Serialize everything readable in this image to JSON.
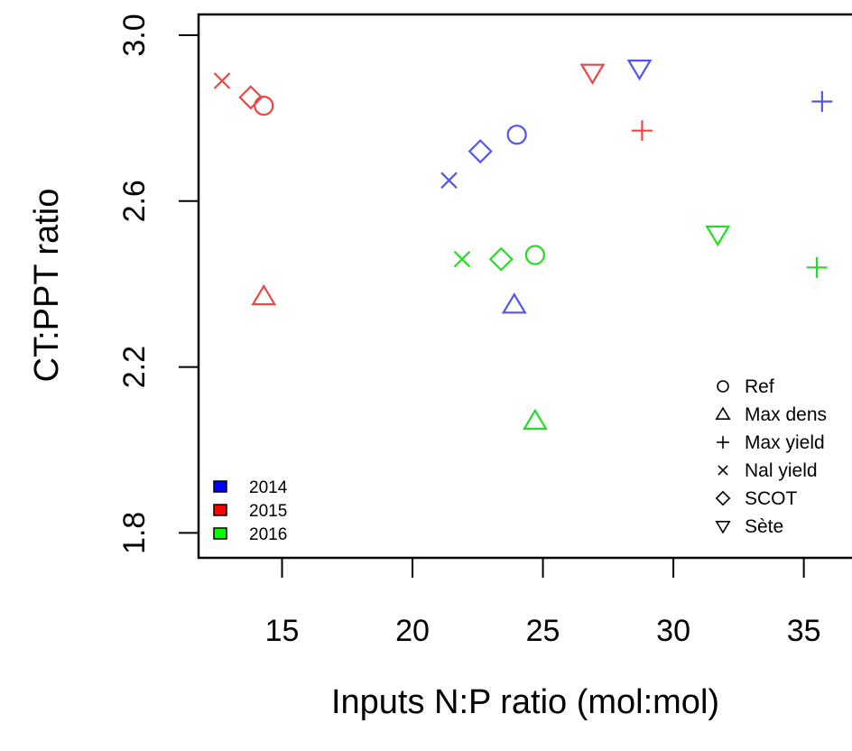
{
  "chart_data": {
    "type": "scatter",
    "title": "",
    "xlabel": "Inputs N:P ratio (mol:mol)",
    "ylabel": "CT:PPT ratio",
    "xlim": [
      11.8,
      37.4
    ],
    "ylim": [
      1.74,
      3.05
    ],
    "xticks": [
      15,
      20,
      25,
      30,
      35
    ],
    "yticks": [
      1.8,
      2.2,
      2.6,
      3.0
    ],
    "xtick_labels": [
      "15",
      "20",
      "25",
      "30",
      "35"
    ],
    "ytick_labels": [
      "1.8",
      "2.2",
      "2.6",
      "3.0"
    ],
    "grid": false,
    "colors": {
      "2014": "#5555ee",
      "2015": "#ee4444",
      "2016": "#22dd22"
    },
    "legend_years": {
      "position": "bottom-left",
      "entries": [
        {
          "label": "2014",
          "color": "#0000ff"
        },
        {
          "label": "2015",
          "color": "#ff0000"
        },
        {
          "label": "2016",
          "color": "#00ff00"
        }
      ]
    },
    "legend_sites": {
      "position": "bottom-right",
      "entries": [
        {
          "label": "Ref",
          "marker": "circle"
        },
        {
          "label": "Max dens",
          "marker": "triangle-up"
        },
        {
          "label": "Max yield",
          "marker": "plus"
        },
        {
          "label": "Nal yield",
          "marker": "cross"
        },
        {
          "label": "SCOT",
          "marker": "diamond"
        },
        {
          "label": "Sète",
          "marker": "triangle-down"
        }
      ]
    },
    "points": [
      {
        "year": "2014",
        "site": "Ref",
        "marker": "circle",
        "x": 24.0,
        "y": 2.76
      },
      {
        "year": "2014",
        "site": "Max dens",
        "marker": "triangle-up",
        "x": 23.9,
        "y": 2.35
      },
      {
        "year": "2014",
        "site": "Max yield",
        "marker": "plus",
        "x": 35.7,
        "y": 2.84
      },
      {
        "year": "2014",
        "site": "Nal yield",
        "marker": "cross",
        "x": 21.4,
        "y": 2.65
      },
      {
        "year": "2014",
        "site": "SCOT",
        "marker": "diamond",
        "x": 22.6,
        "y": 2.72
      },
      {
        "year": "2014",
        "site": "Sète",
        "marker": "triangle-down",
        "x": 28.7,
        "y": 2.92
      },
      {
        "year": "2015",
        "site": "Ref",
        "marker": "circle",
        "x": 14.3,
        "y": 2.83
      },
      {
        "year": "2015",
        "site": "Max dens",
        "marker": "triangle-up",
        "x": 14.3,
        "y": 2.37
      },
      {
        "year": "2015",
        "site": "Max yield",
        "marker": "plus",
        "x": 28.8,
        "y": 2.77
      },
      {
        "year": "2015",
        "site": "Nal yield",
        "marker": "cross",
        "x": 12.7,
        "y": 2.89
      },
      {
        "year": "2015",
        "site": "SCOT",
        "marker": "diamond",
        "x": 13.8,
        "y": 2.85
      },
      {
        "year": "2015",
        "site": "Sète",
        "marker": "triangle-down",
        "x": 26.9,
        "y": 2.91
      },
      {
        "year": "2016",
        "site": "Ref",
        "marker": "circle",
        "x": 24.7,
        "y": 2.47
      },
      {
        "year": "2016",
        "site": "Max dens",
        "marker": "triangle-up",
        "x": 24.7,
        "y": 2.07
      },
      {
        "year": "2016",
        "site": "Max yield",
        "marker": "plus",
        "x": 35.5,
        "y": 2.44
      },
      {
        "year": "2016",
        "site": "Nal yield",
        "marker": "cross",
        "x": 21.9,
        "y": 2.46
      },
      {
        "year": "2016",
        "site": "SCOT",
        "marker": "diamond",
        "x": 23.4,
        "y": 2.46
      },
      {
        "year": "2016",
        "site": "Sète",
        "marker": "triangle-down",
        "x": 31.7,
        "y": 2.52
      }
    ]
  }
}
